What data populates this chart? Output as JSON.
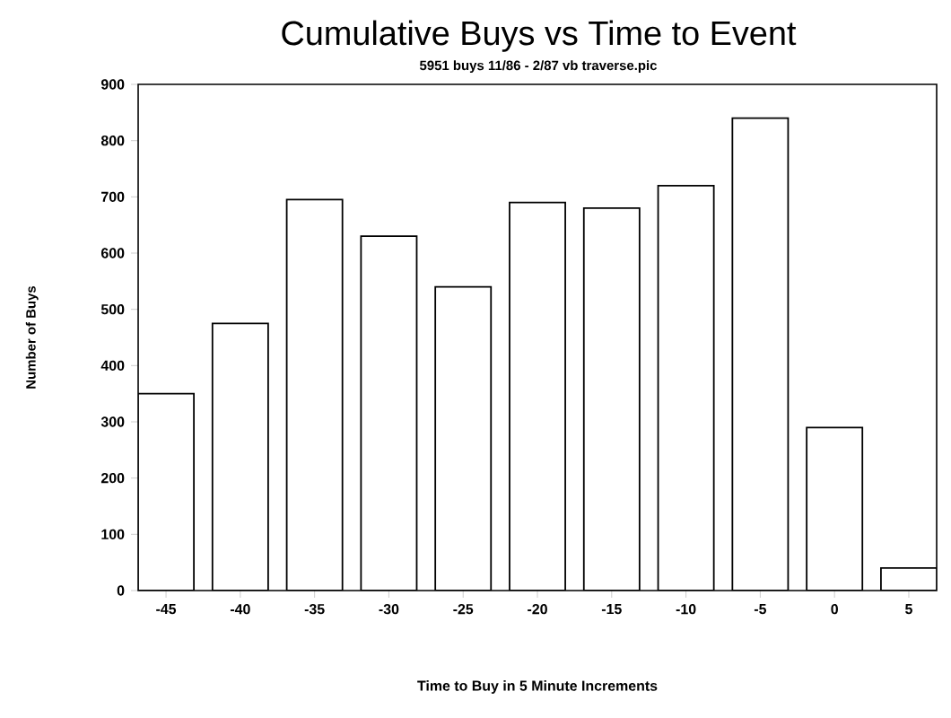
{
  "chart_data": {
    "type": "bar",
    "title": "Cumulative Buys vs Time to Event",
    "subtitle": "5951 buys 11/86 - 2/87 vb traverse.pic",
    "xlabel": "Time to Buy in 5 Minute Increments",
    "ylabel": "Number of Buys",
    "categories": [
      "-45",
      "-40",
      "-35",
      "-30",
      "-25",
      "-20",
      "-15",
      "-10",
      "-5",
      "0",
      "5"
    ],
    "values": [
      350,
      475,
      695,
      630,
      540,
      690,
      680,
      720,
      840,
      290,
      40
    ],
    "color": "#000000",
    "ylim": [
      0,
      900
    ],
    "yticks": [
      0,
      100,
      200,
      300,
      400,
      500,
      600,
      700,
      800,
      900
    ]
  }
}
